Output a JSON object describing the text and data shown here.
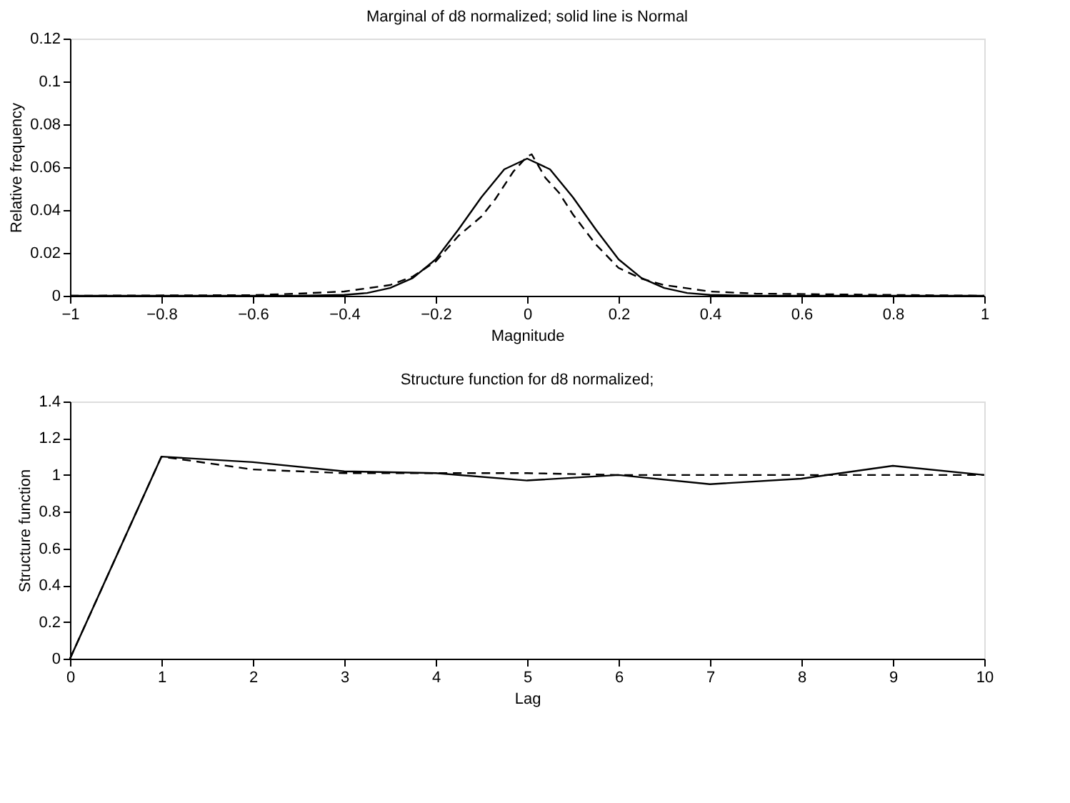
{
  "chart_data": [
    {
      "type": "line",
      "title": "Marginal of d8 normalized; solid line is Normal",
      "xlabel": "Magnitude",
      "ylabel": "Relative frequency",
      "xlim": [
        -1,
        1
      ],
      "xticks": [
        -1,
        -0.8,
        -0.6,
        -0.4,
        -0.2,
        0,
        0.2,
        0.4,
        0.6,
        0.8,
        1
      ],
      "ylim": [
        0,
        0.12
      ],
      "yticks": [
        0,
        0.02,
        0.04,
        0.06,
        0.08,
        0.1,
        0.12
      ],
      "series": [
        {
          "color": "#000000",
          "line_style": "solid",
          "x": [
            -1,
            -0.5,
            -0.4,
            -0.35,
            -0.3,
            -0.25,
            -0.2,
            -0.15,
            -0.1,
            -0.05,
            0,
            0.05,
            0.1,
            0.15,
            0.2,
            0.25,
            0.3,
            0.35,
            0.4,
            0.5,
            1
          ],
          "values": [
            0,
            0,
            0.0004,
            0.0013,
            0.0036,
            0.0083,
            0.017,
            0.031,
            0.046,
            0.059,
            0.064,
            0.059,
            0.046,
            0.031,
            0.017,
            0.0083,
            0.0036,
            0.0013,
            0.0004,
            0,
            0
          ]
        },
        {
          "color": "#000000",
          "line_style": "dashed",
          "x": [
            -1,
            -0.6,
            -0.5,
            -0.4,
            -0.3,
            -0.25,
            -0.2,
            -0.15,
            -0.1,
            -0.07,
            -0.03,
            0,
            0.01,
            0.04,
            0.07,
            0.1,
            0.15,
            0.2,
            0.25,
            0.3,
            0.4,
            0.5,
            1
          ],
          "values": [
            0,
            0.0003,
            0.001,
            0.002,
            0.005,
            0.009,
            0.016,
            0.028,
            0.037,
            0.045,
            0.058,
            0.065,
            0.066,
            0.055,
            0.048,
            0.038,
            0.024,
            0.013,
            0.008,
            0.005,
            0.002,
            0.001,
            0
          ]
        }
      ]
    },
    {
      "type": "line",
      "title": "Structure function for d8 normalized;",
      "xlabel": "Lag",
      "ylabel": "Structure function",
      "xlim": [
        0,
        10
      ],
      "xticks": [
        0,
        1,
        2,
        3,
        4,
        5,
        6,
        7,
        8,
        9,
        10
      ],
      "ylim": [
        0,
        1.4
      ],
      "yticks": [
        0,
        0.2,
        0.4,
        0.6,
        0.8,
        1,
        1.2,
        1.4
      ],
      "series": [
        {
          "color": "#000000",
          "line_style": "solid",
          "x": [
            0,
            1,
            2,
            3,
            4,
            5,
            6,
            7,
            8,
            9,
            10
          ],
          "values": [
            0,
            1.1,
            1.07,
            1.02,
            1.01,
            0.97,
            1.0,
            0.95,
            0.98,
            1.05,
            1.0
          ]
        },
        {
          "color": "#000000",
          "line_style": "dashed",
          "x": [
            0,
            1,
            2,
            3,
            4,
            5,
            6,
            7,
            8,
            9,
            10
          ],
          "values": [
            0,
            1.1,
            1.03,
            1.01,
            1.01,
            1.01,
            1.0,
            1.0,
            1.0,
            1.0,
            1.0
          ]
        }
      ]
    }
  ]
}
